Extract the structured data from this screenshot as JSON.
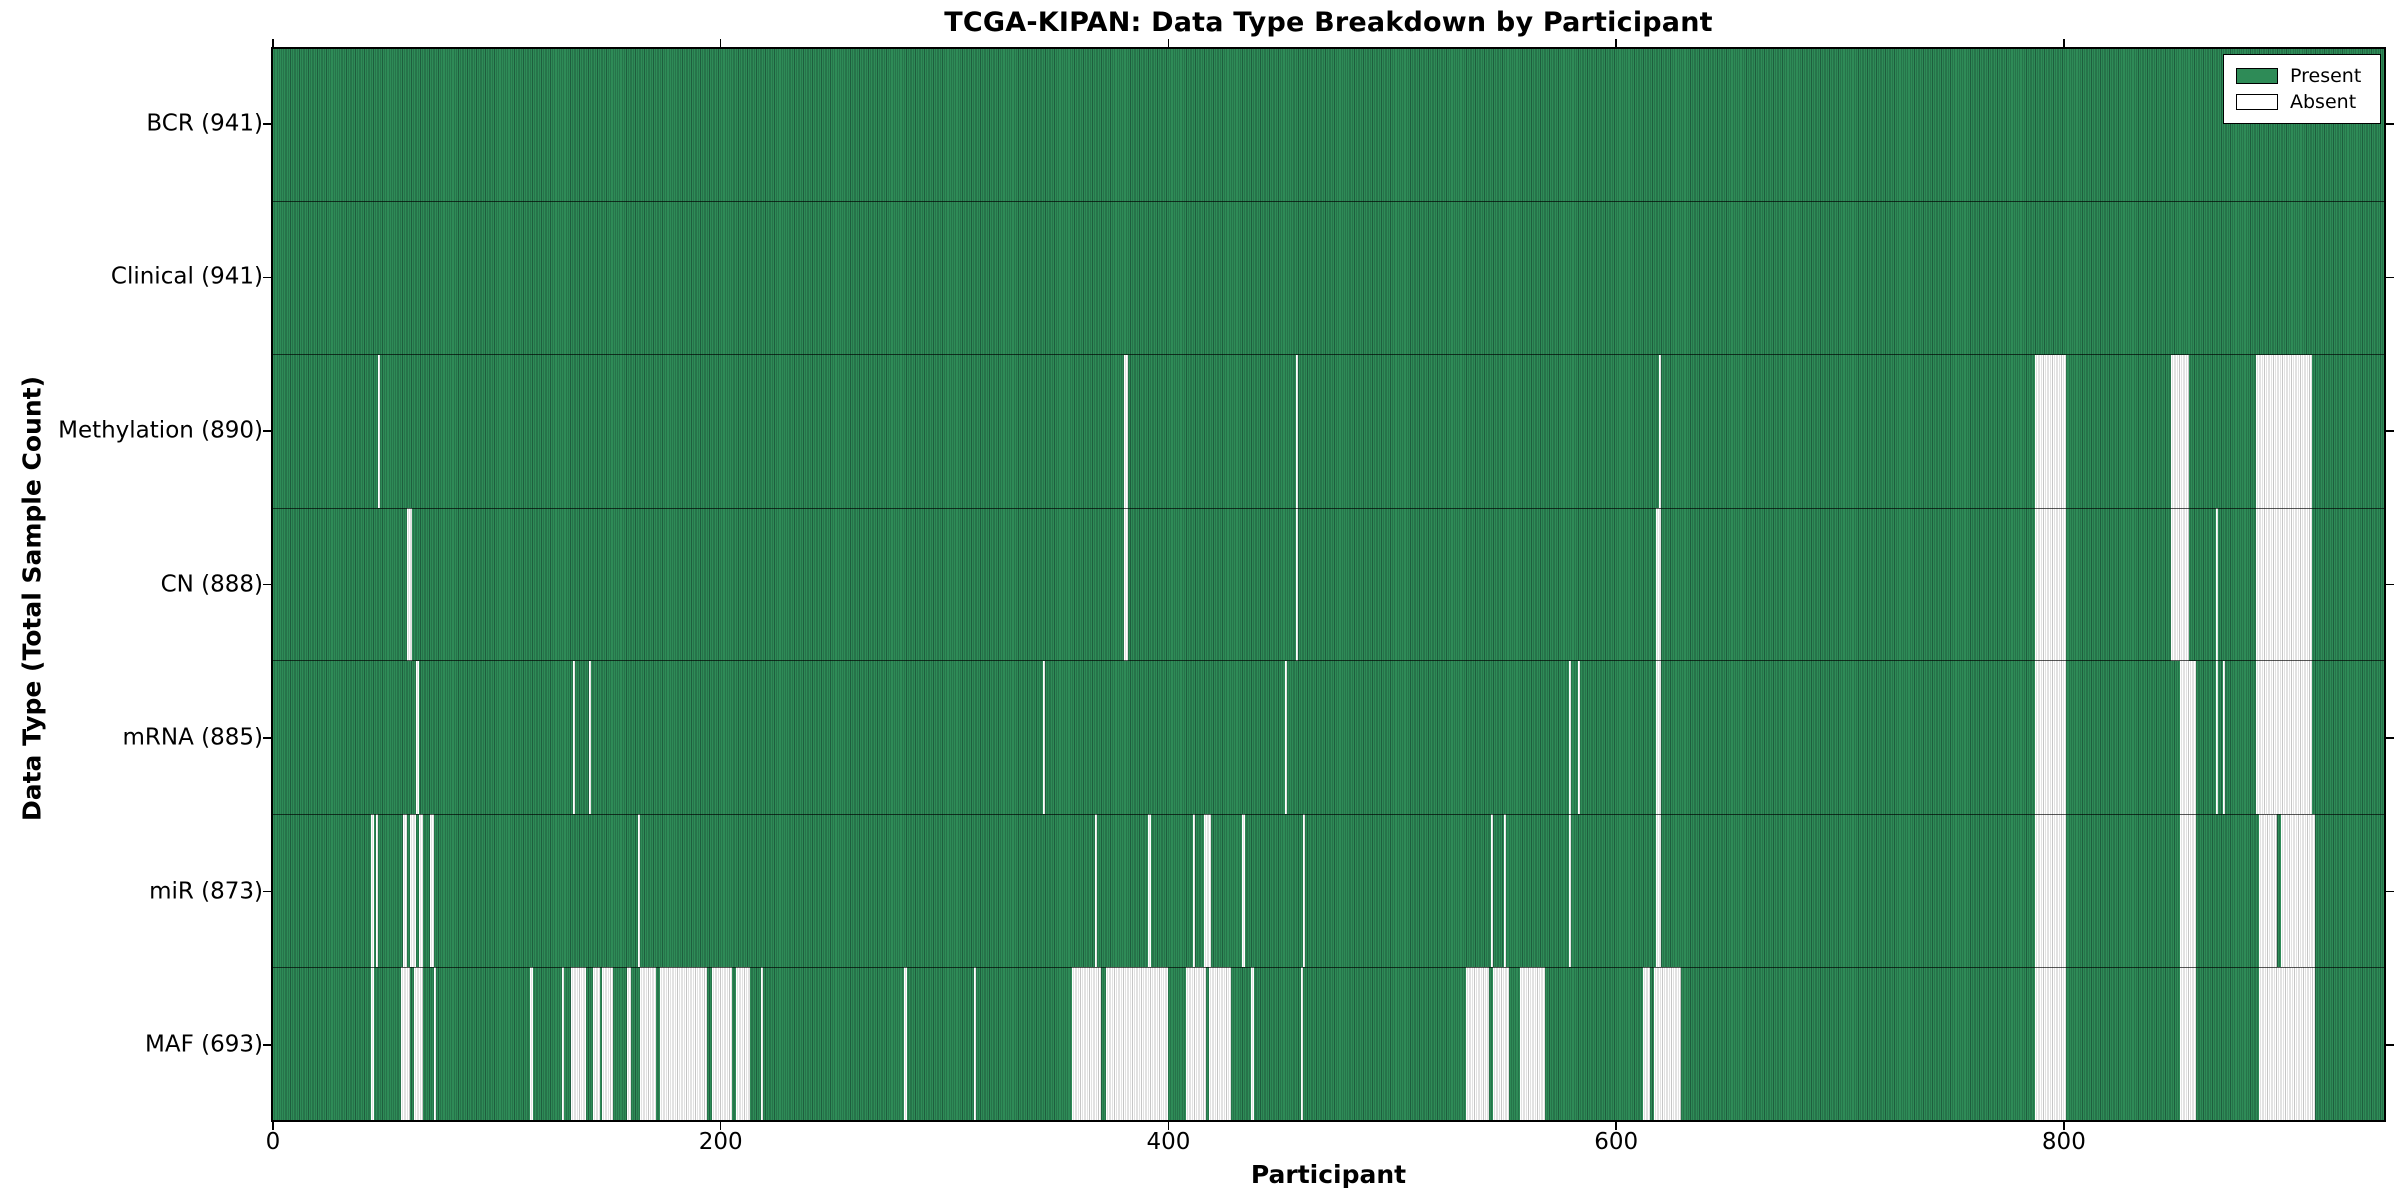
{
  "title": "TCGA-KIPAN: Data Type Breakdown by Participant",
  "axes": {
    "x_label": "Participant",
    "y_label": "Data Type (Total Sample Count)"
  },
  "legend": {
    "items": [
      {
        "label": "Present",
        "kind": "present"
      },
      {
        "label": "Absent",
        "kind": "absent"
      }
    ]
  },
  "chart_data": {
    "type": "heatmap",
    "title": "TCGA-KIPAN: Data Type Breakdown by Participant",
    "xlabel": "Participant",
    "ylabel": "Data Type (Total Sample Count)",
    "x_range": [
      0,
      943
    ],
    "x_ticks": [
      0,
      200,
      400,
      600,
      800
    ],
    "legend": [
      "Present",
      "Absent"
    ],
    "legend_position": "upper right",
    "colors": {
      "present": "#2e8b57",
      "present_edge": "#1e5e3e",
      "absent": "#ffffff",
      "absent_edge": "#c6c6c6",
      "border": "#000000"
    },
    "rows": [
      {
        "name": "BCR",
        "label": "BCR (941)",
        "total_samples": 941,
        "absent_intervals": []
      },
      {
        "name": "Clinical",
        "label": "Clinical (941)",
        "total_samples": 941,
        "absent_intervals": []
      },
      {
        "name": "Methylation",
        "label": "Methylation (890)",
        "total_samples": 890,
        "absent_intervals": [
          [
            47,
            48
          ],
          [
            380,
            382
          ],
          [
            457,
            458
          ],
          [
            619,
            620
          ],
          [
            787,
            801
          ],
          [
            848,
            856
          ],
          [
            886,
            911
          ]
        ]
      },
      {
        "name": "CN",
        "label": "CN (888)",
        "total_samples": 888,
        "absent_intervals": [
          [
            60,
            62
          ],
          [
            380,
            382
          ],
          [
            457,
            458
          ],
          [
            618,
            620
          ],
          [
            787,
            801
          ],
          [
            848,
            856
          ],
          [
            868,
            869
          ],
          [
            886,
            911
          ]
        ]
      },
      {
        "name": "mRNA",
        "label": "mRNA (885)",
        "total_samples": 885,
        "absent_intervals": [
          [
            64,
            65
          ],
          [
            134,
            135
          ],
          [
            141,
            142
          ],
          [
            344,
            345
          ],
          [
            452,
            453
          ],
          [
            579,
            580
          ],
          [
            583,
            584
          ],
          [
            618,
            620
          ],
          [
            787,
            801
          ],
          [
            852,
            859
          ],
          [
            868,
            869
          ],
          [
            871,
            872
          ],
          [
            886,
            911
          ]
        ]
      },
      {
        "name": "miR",
        "label": "miR (873)",
        "total_samples": 873,
        "absent_intervals": [
          [
            44,
            45
          ],
          [
            46,
            47
          ],
          [
            58,
            60
          ],
          [
            61,
            64
          ],
          [
            65,
            67
          ],
          [
            70,
            72
          ],
          [
            163,
            164
          ],
          [
            367,
            368
          ],
          [
            391,
            392
          ],
          [
            411,
            412
          ],
          [
            416,
            419
          ],
          [
            433,
            434
          ],
          [
            460,
            461
          ],
          [
            544,
            545
          ],
          [
            550,
            551
          ],
          [
            579,
            580
          ],
          [
            618,
            620
          ],
          [
            787,
            801
          ],
          [
            852,
            859
          ],
          [
            887,
            895
          ],
          [
            897,
            912
          ]
        ]
      },
      {
        "name": "MAF",
        "label": "MAF (693)",
        "total_samples": 693,
        "absent_intervals": [
          [
            44,
            45
          ],
          [
            57,
            61
          ],
          [
            63,
            67
          ],
          [
            72,
            73
          ],
          [
            115,
            116
          ],
          [
            129,
            130
          ],
          [
            133,
            140
          ],
          [
            143,
            146
          ],
          [
            147,
            152
          ],
          [
            158,
            160
          ],
          [
            164,
            171
          ],
          [
            173,
            194
          ],
          [
            196,
            205
          ],
          [
            207,
            213
          ],
          [
            218,
            219
          ],
          [
            282,
            283
          ],
          [
            313,
            314
          ],
          [
            357,
            370
          ],
          [
            372,
            400
          ],
          [
            408,
            417
          ],
          [
            418,
            428
          ],
          [
            437,
            438
          ],
          [
            459,
            460
          ],
          [
            533,
            543
          ],
          [
            545,
            552
          ],
          [
            557,
            568
          ],
          [
            612,
            615
          ],
          [
            617,
            629
          ],
          [
            787,
            801
          ],
          [
            852,
            859
          ],
          [
            887,
            912
          ]
        ]
      }
    ]
  }
}
